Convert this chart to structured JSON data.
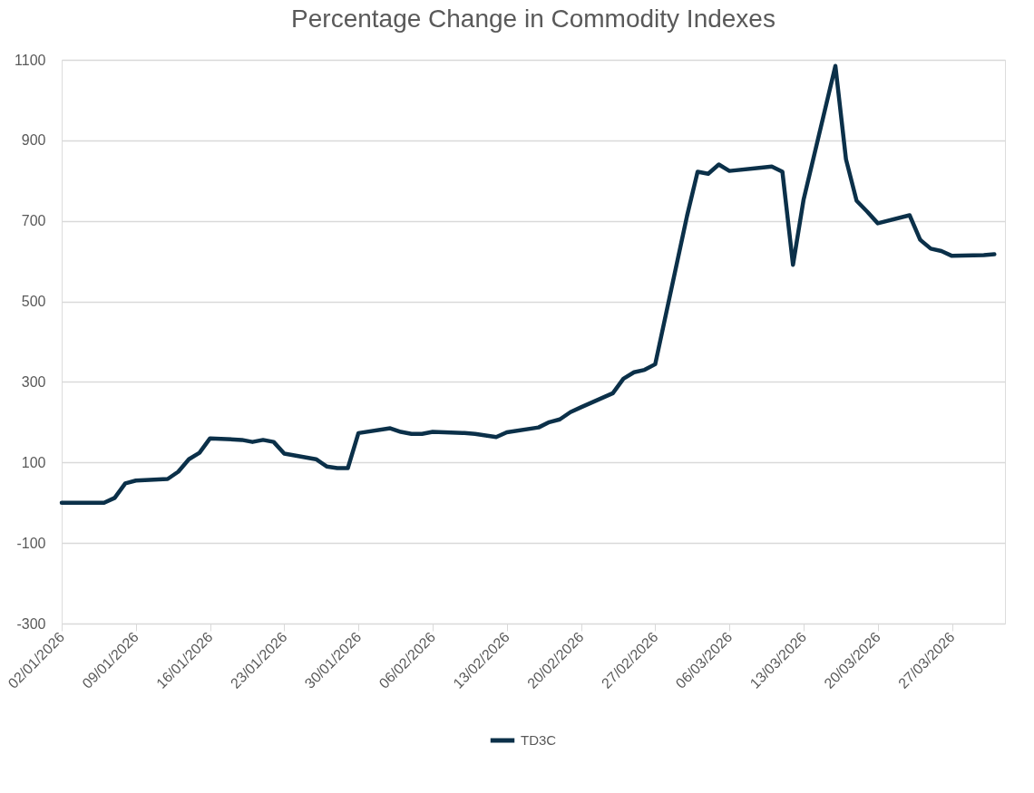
{
  "chart_data": {
    "type": "line",
    "title": "Percentage Change in Commodity Indexes",
    "x": [
      "2026-01-02",
      "2026-01-05",
      "2026-01-06",
      "2026-01-07",
      "2026-01-08",
      "2026-01-09",
      "2026-01-12",
      "2026-01-13",
      "2026-01-14",
      "2026-01-15",
      "2026-01-16",
      "2026-01-19",
      "2026-01-20",
      "2026-01-21",
      "2026-01-22",
      "2026-01-23",
      "2026-01-26",
      "2026-01-27",
      "2026-01-28",
      "2026-01-29",
      "2026-01-30",
      "2026-02-02",
      "2026-02-03",
      "2026-02-04",
      "2026-02-05",
      "2026-02-06",
      "2026-02-09",
      "2026-02-10",
      "2026-02-11",
      "2026-02-12",
      "2026-02-13",
      "2026-02-16",
      "2026-02-17",
      "2026-02-18",
      "2026-02-19",
      "2026-02-20",
      "2026-02-23",
      "2026-02-24",
      "2026-02-25",
      "2026-02-26",
      "2026-02-27",
      "2026-03-02",
      "2026-03-03",
      "2026-03-04",
      "2026-03-05",
      "2026-03-06",
      "2026-03-09",
      "2026-03-10",
      "2026-03-11",
      "2026-03-12",
      "2026-03-13",
      "2026-03-16",
      "2026-03-17",
      "2026-03-18",
      "2026-03-19",
      "2026-03-20",
      "2026-03-23",
      "2026-03-24",
      "2026-03-25",
      "2026-03-26",
      "2026-03-27",
      "2026-03-30",
      "2026-03-31"
    ],
    "series": [
      {
        "name": "TD3C",
        "color": "#0b3049",
        "values": [
          0,
          0,
          0,
          12,
          48,
          55,
          59,
          77,
          108,
          124,
          160,
          156,
          151,
          156,
          151,
          122,
          108,
          90,
          86,
          86,
          173,
          185,
          176,
          171,
          171,
          176,
          173,
          171,
          167,
          163,
          175,
          187,
          200,
          207,
          225,
          237,
          272,
          308,
          324,
          330,
          344,
          712,
          822,
          817,
          840,
          824,
          832,
          835,
          822,
          591,
          753,
          1085,
          853,
          750,
          723,
          694,
          714,
          653,
          631,
          625,
          613,
          615,
          617
        ]
      }
    ],
    "xlim": [
      "2026-01-02",
      "2026-04-01"
    ],
    "xticks": [
      {
        "value": "2026-01-02",
        "label": "02/01/2026"
      },
      {
        "value": "2026-01-09",
        "label": "09/01/2026"
      },
      {
        "value": "2026-01-16",
        "label": "16/01/2026"
      },
      {
        "value": "2026-01-23",
        "label": "23/01/2026"
      },
      {
        "value": "2026-01-30",
        "label": "30/01/2026"
      },
      {
        "value": "2026-02-06",
        "label": "06/02/2026"
      },
      {
        "value": "2026-02-13",
        "label": "13/02/2026"
      },
      {
        "value": "2026-02-20",
        "label": "20/02/2026"
      },
      {
        "value": "2026-02-27",
        "label": "27/02/2026"
      },
      {
        "value": "2026-03-06",
        "label": "06/03/2026"
      },
      {
        "value": "2026-03-13",
        "label": "13/03/2026"
      },
      {
        "value": "2026-03-20",
        "label": "20/03/2026"
      },
      {
        "value": "2026-03-27",
        "label": "27/03/2026"
      }
    ],
    "ylim": [
      -300,
      1100
    ],
    "yticks": [
      -300,
      -100,
      100,
      300,
      500,
      700,
      900,
      1100
    ],
    "grid": "y",
    "legend": "bottom",
    "marker": "none",
    "line_style": "solid"
  }
}
